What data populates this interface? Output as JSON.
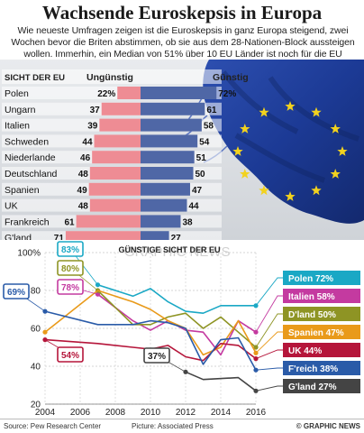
{
  "title": "Wachsende Euroskepsis in Europa",
  "intro": "Wie neueste Umfragen zeigen ist die Euroskepsis in ganz Europa steigend, zwei Wochen bevor die Briten abstimmen, ob sie aus dem 28-Nationen-Block aussteigen wollen. Immerhin, ein Median von 51% über 10 EU Länder ist noch für die EU",
  "source": "Source: Pew Research Center",
  "picture": "Picture: Associated Press",
  "copyright": "© GRAPHIC NEWS",
  "watermark": "GRAPHIC NEWS",
  "colors": {
    "unfavorable": "#ee8c94",
    "favorable": "#4f67a6",
    "flag": "#1f3e9a",
    "star": "#f2d21e"
  },
  "chart_data": [
    {
      "type": "bar",
      "header": "SICHT DER EU",
      "left_label": "Ungünstig",
      "right_label": "Günstig",
      "categories": [
        "Polen",
        "Ungarn",
        "Italien",
        "Schweden",
        "Niederlande",
        "Deutschland",
        "Spanien",
        "UK",
        "Frankreich",
        "G'land"
      ],
      "series": [
        {
          "name": "Ungünstig",
          "values": [
            22,
            37,
            39,
            44,
            46,
            48,
            49,
            48,
            61,
            71
          ]
        },
        {
          "name": "Günstig",
          "values": [
            72,
            61,
            58,
            54,
            51,
            50,
            47,
            44,
            38,
            27
          ]
        }
      ],
      "value_labels": [
        {
          "left": "22%",
          "right": "72%"
        },
        {
          "left": "37",
          "right": "61"
        },
        {
          "left": "39",
          "right": "58"
        },
        {
          "left": "44",
          "right": "54"
        },
        {
          "left": "46",
          "right": "51"
        },
        {
          "left": "48",
          "right": "50"
        },
        {
          "left": "49",
          "right": "47"
        },
        {
          "left": "48",
          "right": "44"
        },
        {
          "left": "61",
          "right": "38"
        },
        {
          "left": "71",
          "right": "27"
        }
      ]
    },
    {
      "type": "line",
      "title": "GÜNSTIGE SICHT DER EU",
      "x_ticks": [
        "2004",
        "2006",
        "2008",
        "2010",
        "2012",
        "2014",
        "2016"
      ],
      "y_ticks": [
        "20",
        "40",
        "60",
        "80",
        "100%"
      ],
      "xlim": [
        2004,
        2016
      ],
      "ylim": [
        20,
        100
      ],
      "grid": true,
      "series": [
        {
          "name": "Polen",
          "label": "Polen 72%",
          "start_label": "83%",
          "color": "#1aa8c5",
          "x": [
            2007,
            2009,
            2010,
            2011,
            2012,
            2013,
            2014,
            2015,
            2016
          ],
          "y": [
            83,
            77,
            81,
            74,
            69,
            68,
            72,
            72,
            72
          ]
        },
        {
          "name": "Italien",
          "label": "Italien 58%",
          "start_label": "78%",
          "color": "#c43aa0",
          "x": [
            2007,
            2009,
            2010,
            2011,
            2012,
            2013,
            2014,
            2015,
            2016
          ],
          "y": [
            78,
            64,
            59,
            64,
            59,
            58,
            46,
            64,
            58
          ]
        },
        {
          "name": "Deutschland",
          "label": "D'land 50%",
          "start_label": "80%",
          "color": "#8e9424",
          "x": [
            2007,
            2009,
            2010,
            2011,
            2012,
            2013,
            2014,
            2015,
            2016
          ],
          "y": [
            80,
            62,
            62,
            66,
            68,
            60,
            66,
            58,
            50
          ]
        },
        {
          "name": "Spanien",
          "label": "Spanien 47%",
          "start_label": "",
          "color": "#e99a1a",
          "x": [
            2004,
            2007,
            2009,
            2010,
            2011,
            2012,
            2013,
            2014,
            2015,
            2016
          ],
          "y": [
            58,
            80,
            74,
            70,
            64,
            60,
            46,
            50,
            64,
            47
          ]
        },
        {
          "name": "UK",
          "label": "UK 44%",
          "start_label": "54%",
          "color": "#b5153a",
          "x": [
            2004,
            2007,
            2009,
            2010,
            2011,
            2012,
            2013,
            2014,
            2015,
            2016
          ],
          "y": [
            54,
            52,
            50,
            49,
            51,
            45,
            43,
            52,
            51,
            44
          ]
        },
        {
          "name": "Frankreich",
          "label": "F'reich 38%",
          "start_label": "69%",
          "color": "#2a5ba8",
          "x": [
            2004,
            2007,
            2009,
            2010,
            2011,
            2012,
            2013,
            2014,
            2015,
            2016
          ],
          "y": [
            69,
            62,
            62,
            64,
            63,
            60,
            41,
            54,
            55,
            38
          ]
        },
        {
          "name": "Griechenland",
          "label": "G'land 27%",
          "start_label": "37%",
          "color": "#444444",
          "x": [
            2012,
            2013,
            2015,
            2016
          ],
          "y": [
            37,
            33,
            34,
            27
          ]
        }
      ]
    }
  ]
}
